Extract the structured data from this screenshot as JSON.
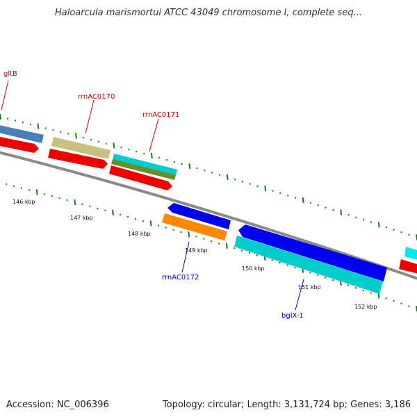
{
  "map": {
    "title": "Haloarcula marismortui ATCC 43049 chromosome I, complete seq...",
    "accession": "Accession: NC_006396",
    "summary": "Topology: circular; Length: 3,131,724 bp; Genes: 3,186"
  },
  "gene_labels": {
    "gltB": "gltB",
    "rrnAC0170": "rrnAC0170",
    "rrnAC0171": "rrnAC0171",
    "rrnAC0172": "rrnAC0172",
    "bglX_1": "bglX-1"
  },
  "scale_ticks": {
    "t146": "146 kbp",
    "t147": "147 kbp",
    "t148": "148 kbp",
    "t149": "149 kbp",
    "t150": "150 kbp",
    "t151": "151 kbp",
    "t152": "152 kbp"
  },
  "colors": {
    "forward_label": "#cc0000",
    "reverse_label": "#0000bb",
    "backbone": "#8a8a8a",
    "tick": "#1a7a1a",
    "cds_red": "#ee0000",
    "cds_blue": "#0000ee",
    "rrna_cyan": "#00cccc",
    "trna_orange": "#ff8800",
    "misc_khaki": "#c8c080",
    "misc_olive": "#6b8e23",
    "gene_steel": "#4a80b8",
    "gene_lightcyan": "#00e8f0"
  }
}
